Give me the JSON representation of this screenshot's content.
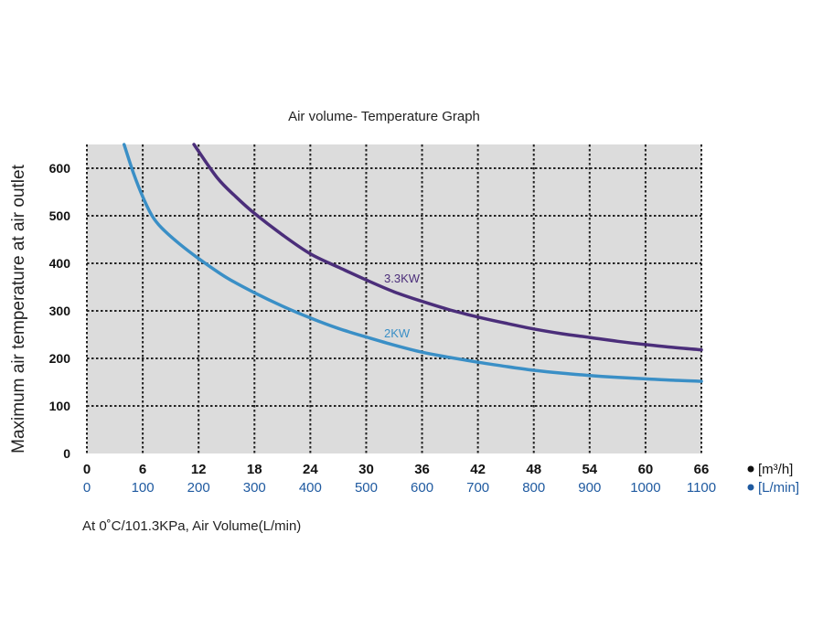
{
  "chart_data": {
    "type": "line",
    "title": "Air volume- Temperature Graph",
    "ylabel": "Maximum air temperature at air outlet",
    "ylim": [
      0,
      650
    ],
    "yticks": [
      0,
      100,
      200,
      300,
      400,
      500,
      600
    ],
    "xlim": [
      0,
      66
    ],
    "xticks_m3h": [
      0,
      6,
      12,
      18,
      24,
      30,
      36,
      42,
      48,
      54,
      60,
      66
    ],
    "xticks_lmin": [
      "0",
      "100",
      "200",
      "300",
      "400",
      "500",
      "600",
      "700",
      "800",
      "900",
      "1000",
      "1100"
    ],
    "unit_m3h": "[m³/h]",
    "unit_lmin": "[L/min]",
    "grid": true,
    "series": [
      {
        "name": "3.3KW",
        "color": "#4b2e7a",
        "x": [
          11.5,
          14,
          16,
          18,
          21,
          24,
          27,
          30,
          33,
          36,
          39,
          42,
          45,
          48,
          51,
          54,
          57,
          60,
          63,
          66
        ],
        "y": [
          650,
          580,
          540,
          505,
          460,
          420,
          392,
          365,
          340,
          320,
          302,
          287,
          274,
          262,
          252,
          244,
          236,
          229,
          223,
          218
        ]
      },
      {
        "name": "2KW",
        "color": "#3a8fc6",
        "x": [
          4,
          5,
          6,
          7,
          8,
          10,
          12,
          15,
          18,
          21,
          24,
          27,
          30,
          33,
          36,
          39,
          42,
          45,
          48,
          51,
          54,
          57,
          60,
          63,
          66
        ],
        "y": [
          650,
          590,
          540,
          500,
          475,
          440,
          410,
          370,
          338,
          310,
          285,
          263,
          245,
          228,
          213,
          202,
          192,
          183,
          175,
          169,
          164,
          160,
          157,
          154,
          152
        ]
      }
    ]
  },
  "footnote": "At 0˚C/101.3KPa,  Air Volume(L/min)"
}
